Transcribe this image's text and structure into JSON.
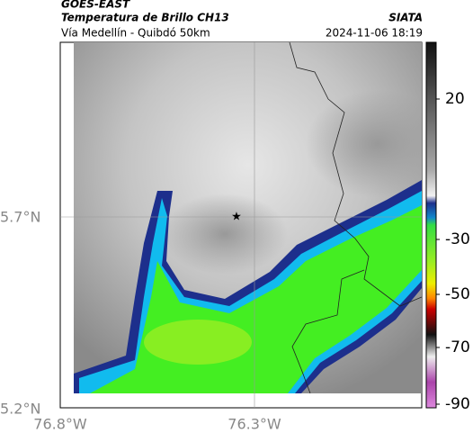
{
  "header": {
    "satellite": "GOES-EAST",
    "title": "Temperatura de Brillo CH13",
    "source": "SIATA",
    "route": "Vía Medellín - Quibdó 50km",
    "timestamp": "2024-11-06 18:19"
  },
  "axes": {
    "latitudes": [
      "5.7°N",
      "5.2°N"
    ],
    "longitudes": [
      "76.8°W",
      "76.3°W"
    ]
  },
  "colorbar": {
    "labels": [
      "20",
      "-30",
      "-50",
      "-70",
      "-90"
    ]
  }
}
